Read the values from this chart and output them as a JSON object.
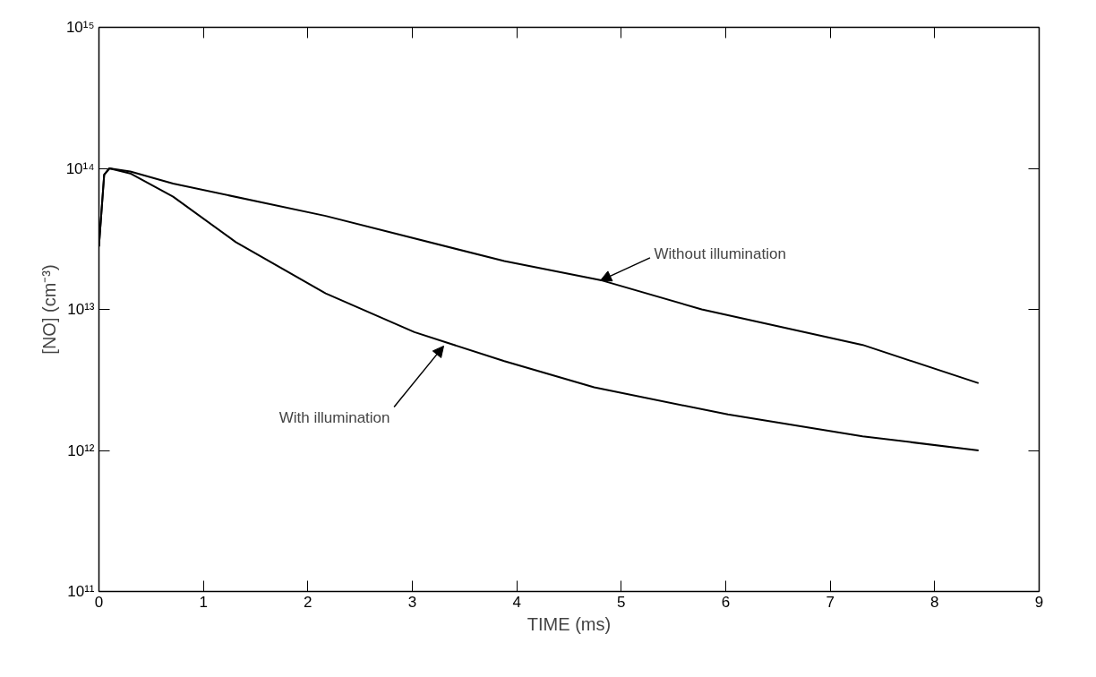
{
  "chart_data": {
    "type": "line",
    "xlabel": "TIME (ms)",
    "ylabel": "[NO] (cm⁻³)",
    "log": "y",
    "grid": false,
    "marker": "none",
    "line_style": "solid",
    "xlim": [
      0,
      9
    ],
    "xticks": [
      0,
      1,
      2,
      3,
      4,
      5,
      6,
      7,
      8,
      9
    ],
    "ylim": [
      100000000000.0,
      1000000000000000.0
    ],
    "yticks": [
      {
        "value": 100000000000.0,
        "label": "10¹¹"
      },
      {
        "value": 1000000000000.0,
        "label": "10¹²"
      },
      {
        "value": 10000000000000.0,
        "label": "10¹³"
      },
      {
        "value": 100000000000000.0,
        "label": "10¹⁴"
      },
      {
        "value": 1000000000000000.0,
        "label": "10¹⁵"
      }
    ],
    "series": [
      {
        "color": "#000000",
        "x": [
          0.0,
          0.05,
          0.1,
          0.3,
          0.71,
          2.17,
          3.88,
          4.82,
          5.77,
          7.31,
          8.42
        ],
        "values": [
          28000000000000.0,
          90000000000000.0,
          100000000000000.0,
          95000000000000.0,
          78000000000000.0,
          46000000000000.0,
          22000000000000.0,
          16000000000000.0,
          10000000000000.0,
          5600000000000.0,
          3000000000000.0
        ]
      },
      {
        "color": "#000000",
        "x": [
          0.0,
          0.05,
          0.1,
          0.3,
          0.71,
          1.31,
          2.17,
          3.02,
          3.88,
          4.74,
          6.02,
          7.31,
          8.42
        ],
        "values": [
          28000000000000.0,
          90000000000000.0,
          100000000000000.0,
          92000000000000.0,
          63000000000000.0,
          30000000000000.0,
          13000000000000.0,
          6900000000000.0,
          4300000000000.0,
          2800000000000.0,
          1800000000000.0,
          1260000000000.0,
          1000000000000.0
        ]
      }
    ],
    "annotations": [
      {
        "text": "Without illumination",
        "x": 4.8,
        "y": 16000000000000.0
      },
      {
        "text": "With illumination",
        "x": 3.3,
        "y": 5500000000000.0
      }
    ]
  }
}
